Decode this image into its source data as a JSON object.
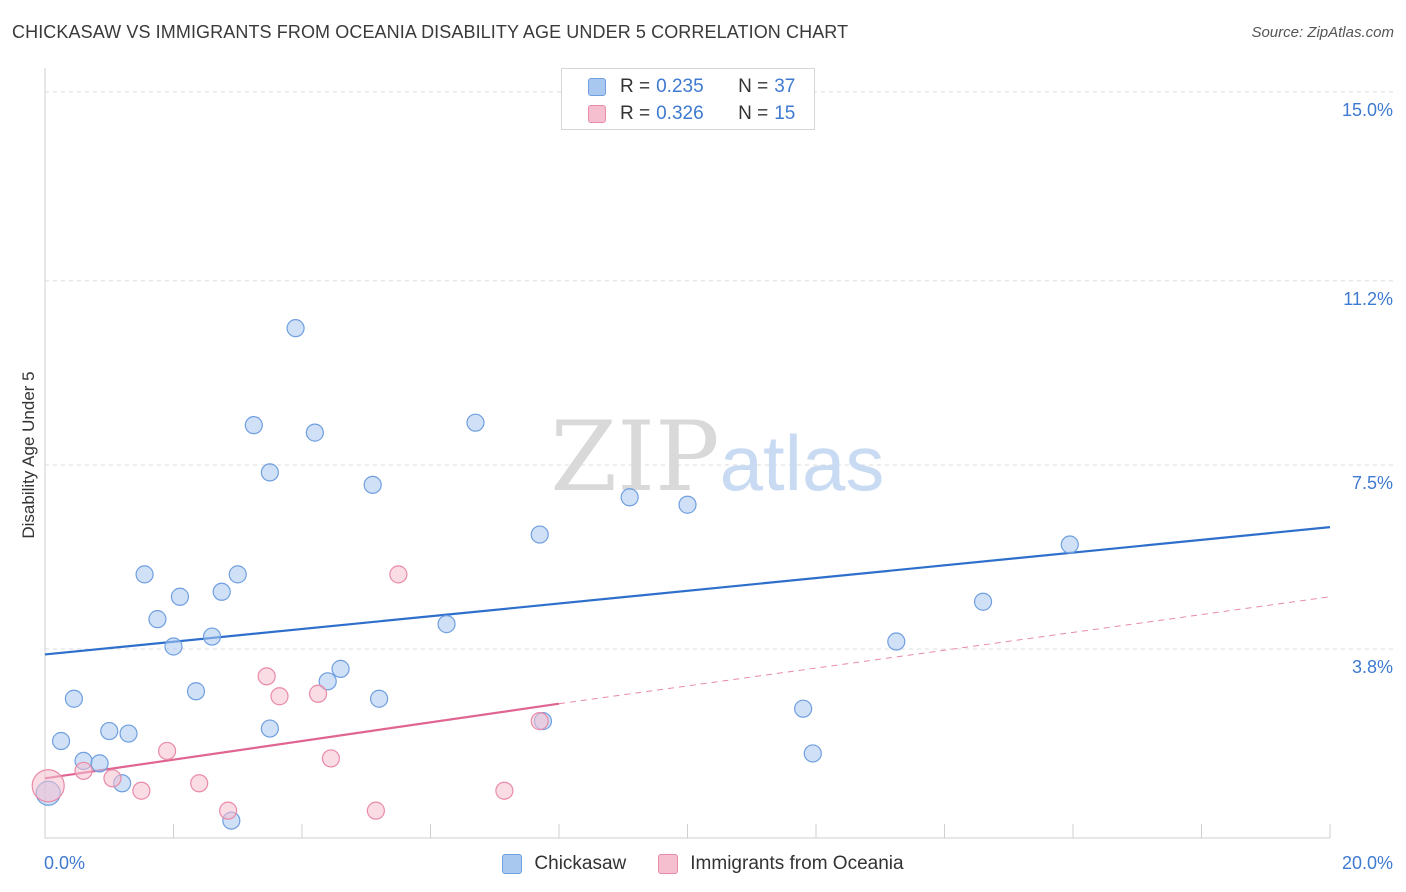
{
  "header": {
    "title": "CHICKASAW VS IMMIGRANTS FROM OCEANIA DISABILITY AGE UNDER 5 CORRELATION CHART",
    "source": "Source: ZipAtlas.com"
  },
  "watermark": {
    "zip": "ZIP",
    "atlas": "atlas"
  },
  "legend": {
    "rows": [
      {
        "r_label": "R =",
        "r_value": "0.235",
        "n_label": "N =",
        "n_value": "37",
        "color": "#a9c8f0",
        "border": "#6f9fe0"
      },
      {
        "r_label": "R =",
        "r_value": "0.326",
        "n_label": "N =",
        "n_value": "15",
        "color": "#f6bfd0",
        "border": "#e98aa8"
      }
    ]
  },
  "bottom_legend": {
    "items": [
      {
        "label": "Chickasaw",
        "color": "#a9c8f0",
        "border": "#6f9fe0"
      },
      {
        "label": "Immigrants from Oceania",
        "color": "#f6bfd0",
        "border": "#e98aa8"
      }
    ]
  },
  "chart_data": {
    "type": "scatter",
    "title": "CHICKASAW VS IMMIGRANTS FROM OCEANIA DISABILITY AGE UNDER 5 CORRELATION CHART",
    "xlabel": "",
    "ylabel": "Disability Age Under 5",
    "xlim": [
      0,
      20
    ],
    "ylim": [
      0,
      15.4
    ],
    "x_tick_labels": [
      "0.0%",
      "20.0%"
    ],
    "y_ticks": [
      {
        "value": 3.8,
        "label": "3.8%"
      },
      {
        "value": 7.5,
        "label": "7.5%"
      },
      {
        "value": 11.2,
        "label": "11.2%"
      },
      {
        "value": 15.0,
        "label": "15.0%"
      }
    ],
    "grid": "horizontal dashed",
    "legend_position": "top-center",
    "series": [
      {
        "name": "Chickasaw",
        "color": "#a9c8f0",
        "stroke": "#6f9fe0",
        "trend": {
          "x": [
            0,
            20
          ],
          "y": [
            3.69,
            6.25
          ],
          "color": "#2f6fcc"
        },
        "points": [
          [
            0.05,
            0.9
          ],
          [
            0.25,
            1.95
          ],
          [
            0.45,
            2.8
          ],
          [
            0.6,
            1.55
          ],
          [
            0.85,
            1.5
          ],
          [
            1.0,
            2.15
          ],
          [
            1.2,
            1.1
          ],
          [
            1.3,
            2.1
          ],
          [
            1.55,
            5.3
          ],
          [
            1.75,
            4.4
          ],
          [
            2.0,
            3.85
          ],
          [
            2.1,
            4.85
          ],
          [
            2.35,
            2.95
          ],
          [
            2.6,
            4.05
          ],
          [
            2.75,
            4.95
          ],
          [
            2.9,
            0.35
          ],
          [
            3.0,
            5.3
          ],
          [
            3.25,
            8.3
          ],
          [
            3.5,
            2.2
          ],
          [
            3.5,
            7.35
          ],
          [
            3.9,
            10.25
          ],
          [
            4.2,
            8.15
          ],
          [
            4.4,
            3.15
          ],
          [
            4.6,
            3.4
          ],
          [
            5.1,
            7.1
          ],
          [
            5.2,
            2.8
          ],
          [
            6.25,
            4.3
          ],
          [
            6.7,
            8.35
          ],
          [
            7.7,
            6.1
          ],
          [
            7.75,
            2.35
          ],
          [
            9.1,
            6.85
          ],
          [
            10.0,
            6.7
          ],
          [
            11.8,
            2.6
          ],
          [
            11.95,
            1.7
          ],
          [
            13.25,
            3.95
          ],
          [
            14.6,
            4.75
          ],
          [
            15.95,
            5.9
          ]
        ]
      },
      {
        "name": "Immigrants from Oceania",
        "color": "#f6bfd0",
        "stroke": "#e98aa8",
        "trend": {
          "x": [
            0,
            8
          ],
          "y": [
            1.2,
            2.7
          ],
          "color": "#e06592"
        },
        "trend_extension": {
          "x": [
            8,
            20
          ],
          "y": [
            2.7,
            4.85
          ],
          "color": "#e98aa8"
        },
        "points": [
          [
            0.05,
            1.05
          ],
          [
            0.6,
            1.35
          ],
          [
            1.05,
            1.2
          ],
          [
            1.5,
            0.95
          ],
          [
            1.9,
            1.75
          ],
          [
            2.4,
            1.1
          ],
          [
            2.85,
            0.55
          ],
          [
            3.45,
            3.25
          ],
          [
            3.65,
            2.85
          ],
          [
            4.25,
            2.9
          ],
          [
            4.45,
            1.6
          ],
          [
            5.5,
            5.3
          ],
          [
            5.15,
            0.55
          ],
          [
            7.15,
            0.95
          ],
          [
            7.7,
            2.35
          ]
        ]
      }
    ]
  }
}
